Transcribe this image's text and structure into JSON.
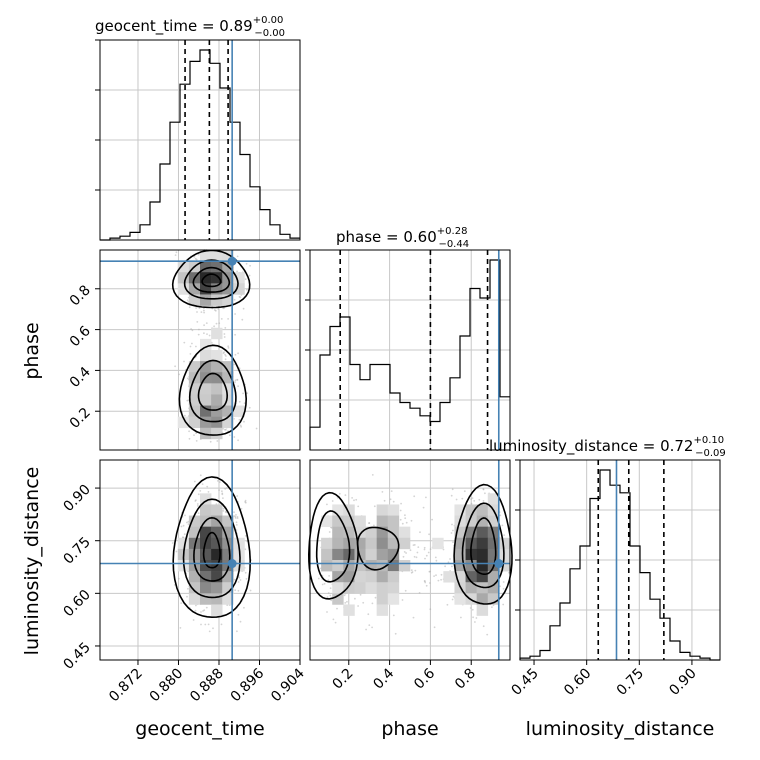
{
  "chart_data": {
    "type": "corner",
    "parameters": [
      "geocent_time",
      "phase",
      "luminosity_distance"
    ],
    "titles": {
      "geocent_time": {
        "label": "geocent_time",
        "median": "0.89",
        "plus": "+0.00",
        "minus": "−0.00"
      },
      "phase": {
        "label": "phase",
        "median": "0.60",
        "plus": "+0.28",
        "minus": "−0.44"
      },
      "luminosity_distance": {
        "label": "luminosity_distance",
        "median": "0.72",
        "plus": "+0.10",
        "minus": "−0.09"
      }
    },
    "axis_labels": {
      "geocent_time": "geocent_time",
      "phase": "phase",
      "luminosity_distance": "luminosity_distance"
    },
    "ranges": {
      "geocent_time": [
        0.8645,
        0.904
      ],
      "phase": [
        0.01,
        0.99
      ],
      "luminosity_distance": [
        0.41,
        0.98
      ]
    },
    "ticks": {
      "geocent_time": {
        "values": [
          0.872,
          0.88,
          0.888,
          0.896,
          0.904
        ],
        "labels": [
          "0.872",
          "0.880",
          "0.888",
          "0.896",
          "0.904"
        ]
      },
      "phase": {
        "values": [
          0.2,
          0.4,
          0.6,
          0.8
        ],
        "labels": [
          "0.2",
          "0.4",
          "0.6",
          "0.8"
        ]
      },
      "luminosity_distance": {
        "values": [
          0.45,
          0.6,
          0.75,
          0.9
        ],
        "labels": [
          "0.45",
          "0.60",
          "0.75",
          "0.90"
        ]
      }
    },
    "truths": {
      "geocent_time": 0.8906,
      "phase": 0.935,
      "luminosity_distance": 0.685
    },
    "quantiles": {
      "geocent_time": [
        0.8813,
        0.8861,
        0.8898
      ],
      "phase": [
        0.158,
        0.6,
        0.88
      ],
      "luminosity_distance": [
        0.633,
        0.72,
        0.82
      ]
    },
    "histograms": {
      "geocent_time": {
        "edges_range": [
          0.8645,
          0.904
        ],
        "counts": [
          0.0,
          0.01,
          0.02,
          0.04,
          0.08,
          0.2,
          0.4,
          0.62,
          0.82,
          0.94,
          1.0,
          0.93,
          0.8,
          0.62,
          0.45,
          0.28,
          0.16,
          0.08,
          0.03,
          0.01
        ]
      },
      "phase": {
        "edges_range": [
          0.01,
          0.99
        ],
        "counts": [
          0.12,
          0.5,
          0.65,
          0.7,
          0.45,
          0.37,
          0.45,
          0.45,
          0.3,
          0.25,
          0.22,
          0.18,
          0.15,
          0.25,
          0.38,
          0.6,
          0.85,
          0.8,
          1.0,
          0.28
        ]
      },
      "luminosity_distance": {
        "edges_range": [
          0.41,
          0.98
        ],
        "counts": [
          0.01,
          0.02,
          0.05,
          0.18,
          0.3,
          0.48,
          0.6,
          0.85,
          1.0,
          0.92,
          0.88,
          0.6,
          0.46,
          0.32,
          0.22,
          0.1,
          0.04,
          0.02,
          0.01,
          0.0
        ]
      }
    },
    "grid": true,
    "colors": {
      "truth": "#4682b4",
      "hist": "#000000",
      "quantile": "#000000",
      "grid": "#c8c8c8",
      "points": "#b0b0b0"
    }
  }
}
